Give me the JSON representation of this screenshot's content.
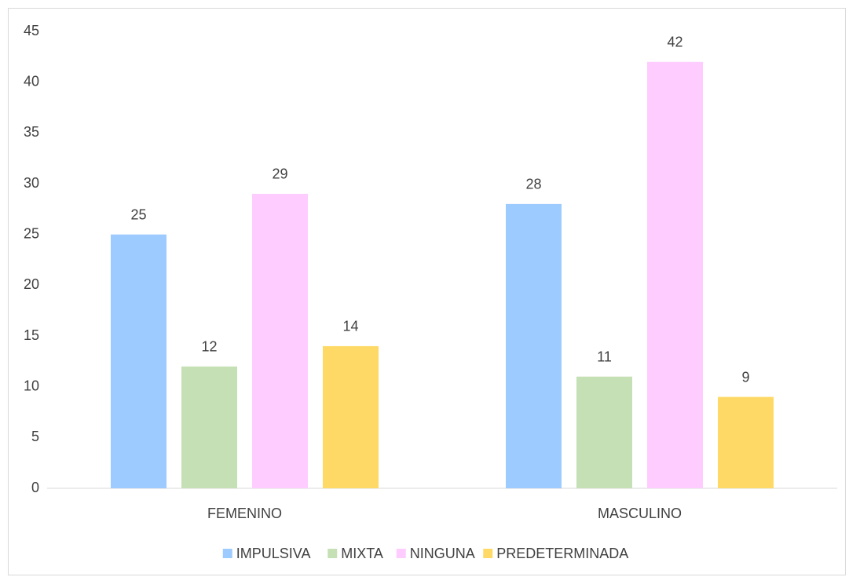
{
  "chart_data": {
    "type": "bar",
    "categories": [
      "FEMENINO",
      "MASCULINO"
    ],
    "series": [
      {
        "name": "IMPULSIVA",
        "color": "#9dcbff",
        "values": [
          25,
          28
        ]
      },
      {
        "name": "MIXTA",
        "color": "#c5e0b4",
        "values": [
          12,
          11
        ]
      },
      {
        "name": "NINGUNA",
        "color": "#ffccff",
        "values": [
          29,
          42
        ]
      },
      {
        "name": "PREDETERMINADA",
        "color": "#ffd966",
        "values": [
          14,
          9
        ]
      }
    ],
    "ylim": [
      0,
      45
    ],
    "yticks": [
      0,
      5,
      10,
      15,
      20,
      25,
      30,
      35,
      40,
      45
    ],
    "grid": false,
    "legend": "bottom"
  }
}
